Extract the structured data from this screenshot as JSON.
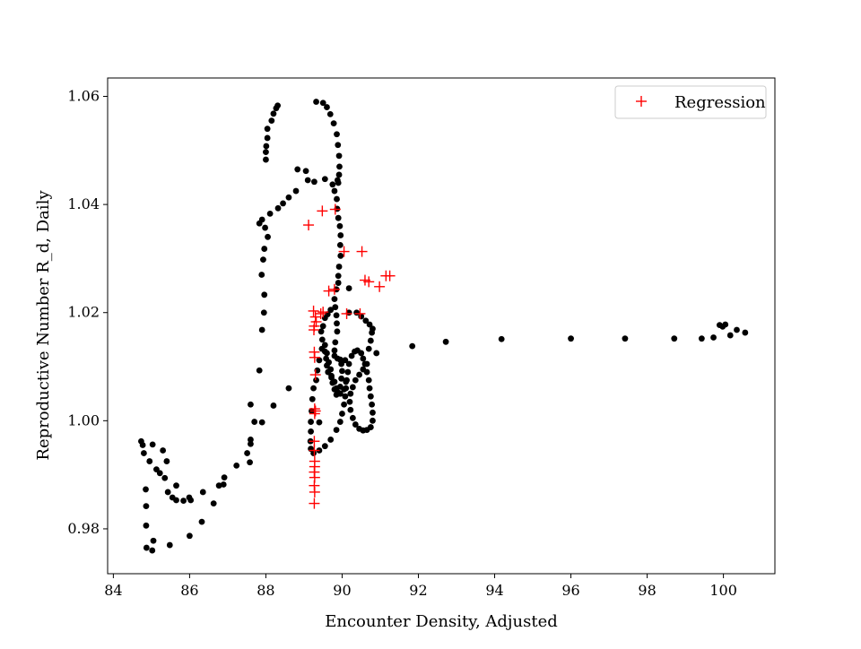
{
  "chart_data": {
    "type": "scatter",
    "title": "",
    "xlabel": "Encounter Density, Adjusted",
    "ylabel": "Reproductive Number R_d, Daily",
    "xlim": [
      83.85,
      101.35
    ],
    "ylim": [
      0.9717,
      1.0634
    ],
    "xticks": [
      84,
      86,
      88,
      90,
      92,
      94,
      96,
      98,
      100
    ],
    "yticks": [
      0.98,
      1.0,
      1.02,
      1.04,
      1.06
    ],
    "xtick_labels": [
      "84",
      "86",
      "88",
      "90",
      "92",
      "94",
      "96",
      "98",
      "100"
    ],
    "ytick_labels": [
      "0.98",
      "1.00",
      "1.02",
      "1.04",
      "1.06"
    ],
    "grid": false,
    "legend": {
      "position": "top-right",
      "entries": [
        "Regression"
      ]
    },
    "colors": {
      "observed": "#000000",
      "regression": "#ff0000"
    },
    "series": [
      {
        "name": "",
        "marker": "dot",
        "color": "#000000",
        "points": [
          [
            84.73,
            0.9962
          ],
          [
            84.77,
            0.9955
          ],
          [
            84.8,
            0.994
          ],
          [
            84.85,
            0.9873
          ],
          [
            84.86,
            0.9842
          ],
          [
            84.86,
            0.9806
          ],
          [
            84.95,
            0.9925
          ],
          [
            84.87,
            0.9765
          ],
          [
            85.02,
            0.976
          ],
          [
            85.05,
            0.9778
          ],
          [
            85.03,
            0.9956
          ],
          [
            85.13,
            0.991
          ],
          [
            85.22,
            0.9903
          ],
          [
            85.3,
            0.9945
          ],
          [
            85.4,
            0.9925
          ],
          [
            85.35,
            0.9894
          ],
          [
            85.43,
            0.9868
          ],
          [
            85.48,
            0.977
          ],
          [
            85.55,
            0.9858
          ],
          [
            85.65,
            0.988
          ],
          [
            85.65,
            0.9853
          ],
          [
            85.84,
            0.9852
          ],
          [
            85.99,
            0.9858
          ],
          [
            86.03,
            0.9853
          ],
          [
            86.0,
            0.9787
          ],
          [
            86.32,
            0.9813
          ],
          [
            86.35,
            0.9868
          ],
          [
            86.63,
            0.9847
          ],
          [
            86.77,
            0.988
          ],
          [
            86.89,
            0.9882
          ],
          [
            86.91,
            0.9895
          ],
          [
            87.23,
            0.9917
          ],
          [
            87.51,
            0.994
          ],
          [
            87.58,
            0.9923
          ],
          [
            87.6,
            0.9957
          ],
          [
            87.6,
            0.9965
          ],
          [
            87.6,
            1.003
          ],
          [
            87.7,
            0.9998
          ],
          [
            87.9,
            0.9997
          ],
          [
            87.83,
            1.0093
          ],
          [
            87.9,
            1.0168
          ],
          [
            87.95,
            1.02
          ],
          [
            87.96,
            1.0233
          ],
          [
            87.89,
            1.027
          ],
          [
            87.93,
            1.0298
          ],
          [
            87.96,
            1.0318
          ],
          [
            88.05,
            1.034
          ],
          [
            87.98,
            1.0357
          ],
          [
            87.83,
            1.0365
          ],
          [
            87.9,
            1.0372
          ],
          [
            88.11,
            1.0383
          ],
          [
            88.32,
            1.0393
          ],
          [
            88.45,
            1.0402
          ],
          [
            88.6,
            1.0413
          ],
          [
            88.79,
            1.0425
          ],
          [
            89.1,
            1.0445
          ],
          [
            89.27,
            1.0442
          ],
          [
            89.05,
            1.0462
          ],
          [
            88.83,
            1.0465
          ],
          [
            88.0,
            1.0483
          ],
          [
            88.0,
            1.0497
          ],
          [
            88.01,
            1.0508
          ],
          [
            88.04,
            1.0523
          ],
          [
            88.04,
            1.054
          ],
          [
            88.15,
            1.0555
          ],
          [
            88.2,
            1.0568
          ],
          [
            88.27,
            1.0578
          ],
          [
            88.31,
            1.0583
          ],
          [
            89.32,
            1.059
          ],
          [
            89.5,
            1.0588
          ],
          [
            89.6,
            1.058
          ],
          [
            89.69,
            1.0567
          ],
          [
            89.78,
            1.055
          ],
          [
            89.86,
            1.053
          ],
          [
            89.89,
            1.051
          ],
          [
            89.92,
            1.049
          ],
          [
            89.93,
            1.047
          ],
          [
            89.92,
            1.0455
          ],
          [
            89.9,
            1.044
          ],
          [
            89.88,
            1.0445
          ],
          [
            89.75,
            1.0437
          ],
          [
            89.55,
            1.0447
          ],
          [
            89.8,
            1.0425
          ],
          [
            89.86,
            1.041
          ],
          [
            89.87,
            1.0392
          ],
          [
            89.9,
            1.0375
          ],
          [
            89.94,
            1.036
          ],
          [
            89.96,
            1.0343
          ],
          [
            89.95,
            1.0325
          ],
          [
            89.96,
            1.0305
          ],
          [
            89.92,
            1.0285
          ],
          [
            89.9,
            1.0268
          ],
          [
            89.9,
            1.0255
          ],
          [
            89.85,
            1.0243
          ],
          [
            89.8,
            1.0225
          ],
          [
            89.82,
            1.021
          ],
          [
            89.85,
            1.0195
          ],
          [
            89.86,
            1.018
          ],
          [
            90.18,
            1.0245
          ],
          [
            90.18,
            1.02
          ],
          [
            89.87,
            1.0165
          ],
          [
            89.82,
            1.0145
          ],
          [
            89.8,
            1.013
          ],
          [
            89.8,
            1.012
          ],
          [
            89.88,
            1.0115
          ],
          [
            89.95,
            1.0113
          ],
          [
            89.98,
            1.0105
          ],
          [
            90.08,
            1.0112
          ],
          [
            90.0,
            1.0092
          ],
          [
            89.98,
            1.0078
          ],
          [
            89.95,
            1.0063
          ],
          [
            89.9,
            1.0052
          ],
          [
            89.85,
            1.006
          ],
          [
            89.8,
            1.0072
          ],
          [
            89.72,
            1.008
          ],
          [
            89.63,
            1.009
          ],
          [
            89.6,
            1.0102
          ],
          [
            89.58,
            1.0115
          ],
          [
            89.55,
            1.0128
          ],
          [
            89.47,
            1.0133
          ],
          [
            89.4,
            1.0112
          ],
          [
            89.35,
            1.0093
          ],
          [
            89.32,
            1.0075
          ],
          [
            89.25,
            1.006
          ],
          [
            89.22,
            1.004
          ],
          [
            89.2,
            1.0018
          ],
          [
            89.18,
            0.9998
          ],
          [
            89.18,
            0.998
          ],
          [
            89.17,
            0.9962
          ],
          [
            89.18,
            0.9948
          ],
          [
            89.25,
            0.994
          ],
          [
            89.4,
            0.9945
          ],
          [
            89.55,
            0.9953
          ],
          [
            89.7,
            0.9965
          ],
          [
            89.85,
            0.9983
          ],
          [
            89.95,
            0.9998
          ],
          [
            90.0,
            1.0013
          ],
          [
            90.05,
            1.003
          ],
          [
            90.08,
            1.0045
          ],
          [
            90.1,
            1.006
          ],
          [
            90.12,
            1.0075
          ],
          [
            90.15,
            1.009
          ],
          [
            90.18,
            1.0105
          ],
          [
            90.25,
            1.012
          ],
          [
            90.33,
            1.0128
          ],
          [
            90.4,
            1.013
          ],
          [
            90.5,
            1.0125
          ],
          [
            90.55,
            1.0115
          ],
          [
            90.6,
            1.0105
          ],
          [
            90.65,
            1.009
          ],
          [
            90.7,
            1.0075
          ],
          [
            90.72,
            1.006
          ],
          [
            90.75,
            1.0045
          ],
          [
            90.78,
            1.003
          ],
          [
            90.8,
            1.0015
          ],
          [
            90.8,
            1.0
          ],
          [
            90.75,
            0.9988
          ],
          [
            90.65,
            0.9983
          ],
          [
            90.55,
            0.9982
          ],
          [
            90.45,
            0.9985
          ],
          [
            90.35,
            0.9993
          ],
          [
            90.28,
            1.0005
          ],
          [
            90.22,
            1.002
          ],
          [
            90.2,
            1.0035
          ],
          [
            90.22,
            1.005
          ],
          [
            90.28,
            1.0062
          ],
          [
            90.35,
            1.0075
          ],
          [
            90.45,
            1.0085
          ],
          [
            90.55,
            1.0095
          ],
          [
            90.65,
            1.0105
          ],
          [
            90.9,
            1.0125
          ],
          [
            90.7,
            1.0133
          ],
          [
            90.75,
            1.0148
          ],
          [
            90.78,
            1.0163
          ],
          [
            90.8,
            1.017
          ],
          [
            90.72,
            1.0178
          ],
          [
            90.62,
            1.0185
          ],
          [
            90.5,
            1.0193
          ],
          [
            90.38,
            1.02
          ],
          [
            89.7,
            1.0205
          ],
          [
            89.62,
            1.0197
          ],
          [
            89.55,
            1.019
          ],
          [
            89.5,
            1.0175
          ],
          [
            89.45,
            1.0165
          ],
          [
            89.48,
            1.015
          ],
          [
            89.55,
            1.014
          ],
          [
            89.6,
            1.0125
          ],
          [
            89.65,
            1.0108
          ],
          [
            89.7,
            1.0095
          ],
          [
            89.72,
            1.0083
          ],
          [
            89.75,
            1.007
          ],
          [
            89.8,
            1.0058
          ],
          [
            89.85,
            1.0048
          ],
          [
            89.95,
            1.005
          ],
          [
            90.05,
            1.0058
          ],
          [
            90.1,
            1.0072
          ],
          [
            89.4,
            0.9997
          ],
          [
            88.6,
            1.006
          ],
          [
            88.2,
            1.0028
          ],
          [
            91.84,
            1.0138
          ],
          [
            92.72,
            1.0146
          ],
          [
            94.18,
            1.0151
          ],
          [
            96.0,
            1.0152
          ],
          [
            97.42,
            1.0152
          ],
          [
            98.71,
            1.0152
          ],
          [
            99.43,
            1.0152
          ],
          [
            99.74,
            1.0154
          ],
          [
            99.9,
            1.0177
          ],
          [
            99.98,
            1.0174
          ],
          [
            100.05,
            1.0178
          ],
          [
            100.18,
            1.0158
          ],
          [
            100.35,
            1.0168
          ],
          [
            100.57,
            1.0163
          ]
        ]
      },
      {
        "name": "Regression",
        "marker": "plus",
        "color": "#ff0000",
        "points": [
          [
            89.12,
            1.0362
          ],
          [
            89.48,
            1.0388
          ],
          [
            89.82,
            1.0391
          ],
          [
            90.05,
            1.0313
          ],
          [
            90.52,
            1.0313
          ],
          [
            90.6,
            1.026
          ],
          [
            90.7,
            1.0257
          ],
          [
            90.98,
            1.0248
          ],
          [
            91.15,
            1.0268
          ],
          [
            91.25,
            1.0268
          ],
          [
            89.65,
            1.024
          ],
          [
            89.8,
            1.0243
          ],
          [
            89.44,
            1.0198
          ],
          [
            89.5,
            1.0201
          ],
          [
            90.12,
            1.0198
          ],
          [
            90.47,
            1.0198
          ],
          [
            89.25,
            1.0203
          ],
          [
            89.3,
            1.0192
          ],
          [
            89.32,
            1.0183
          ],
          [
            89.27,
            1.0175
          ],
          [
            89.26,
            1.0168
          ],
          [
            89.27,
            1.0127
          ],
          [
            89.28,
            1.0117
          ],
          [
            89.3,
            1.0085
          ],
          [
            89.28,
            1.0022
          ],
          [
            89.3,
            1.0018
          ],
          [
            89.28,
            1.0013
          ],
          [
            89.27,
            0.9962
          ],
          [
            89.27,
            0.9945
          ],
          [
            89.28,
            0.9925
          ],
          [
            89.28,
            0.9915
          ],
          [
            89.27,
            0.9905
          ],
          [
            89.28,
            0.9895
          ],
          [
            89.27,
            0.988
          ],
          [
            89.28,
            0.9868
          ],
          [
            89.27,
            0.9847
          ]
        ]
      }
    ]
  }
}
